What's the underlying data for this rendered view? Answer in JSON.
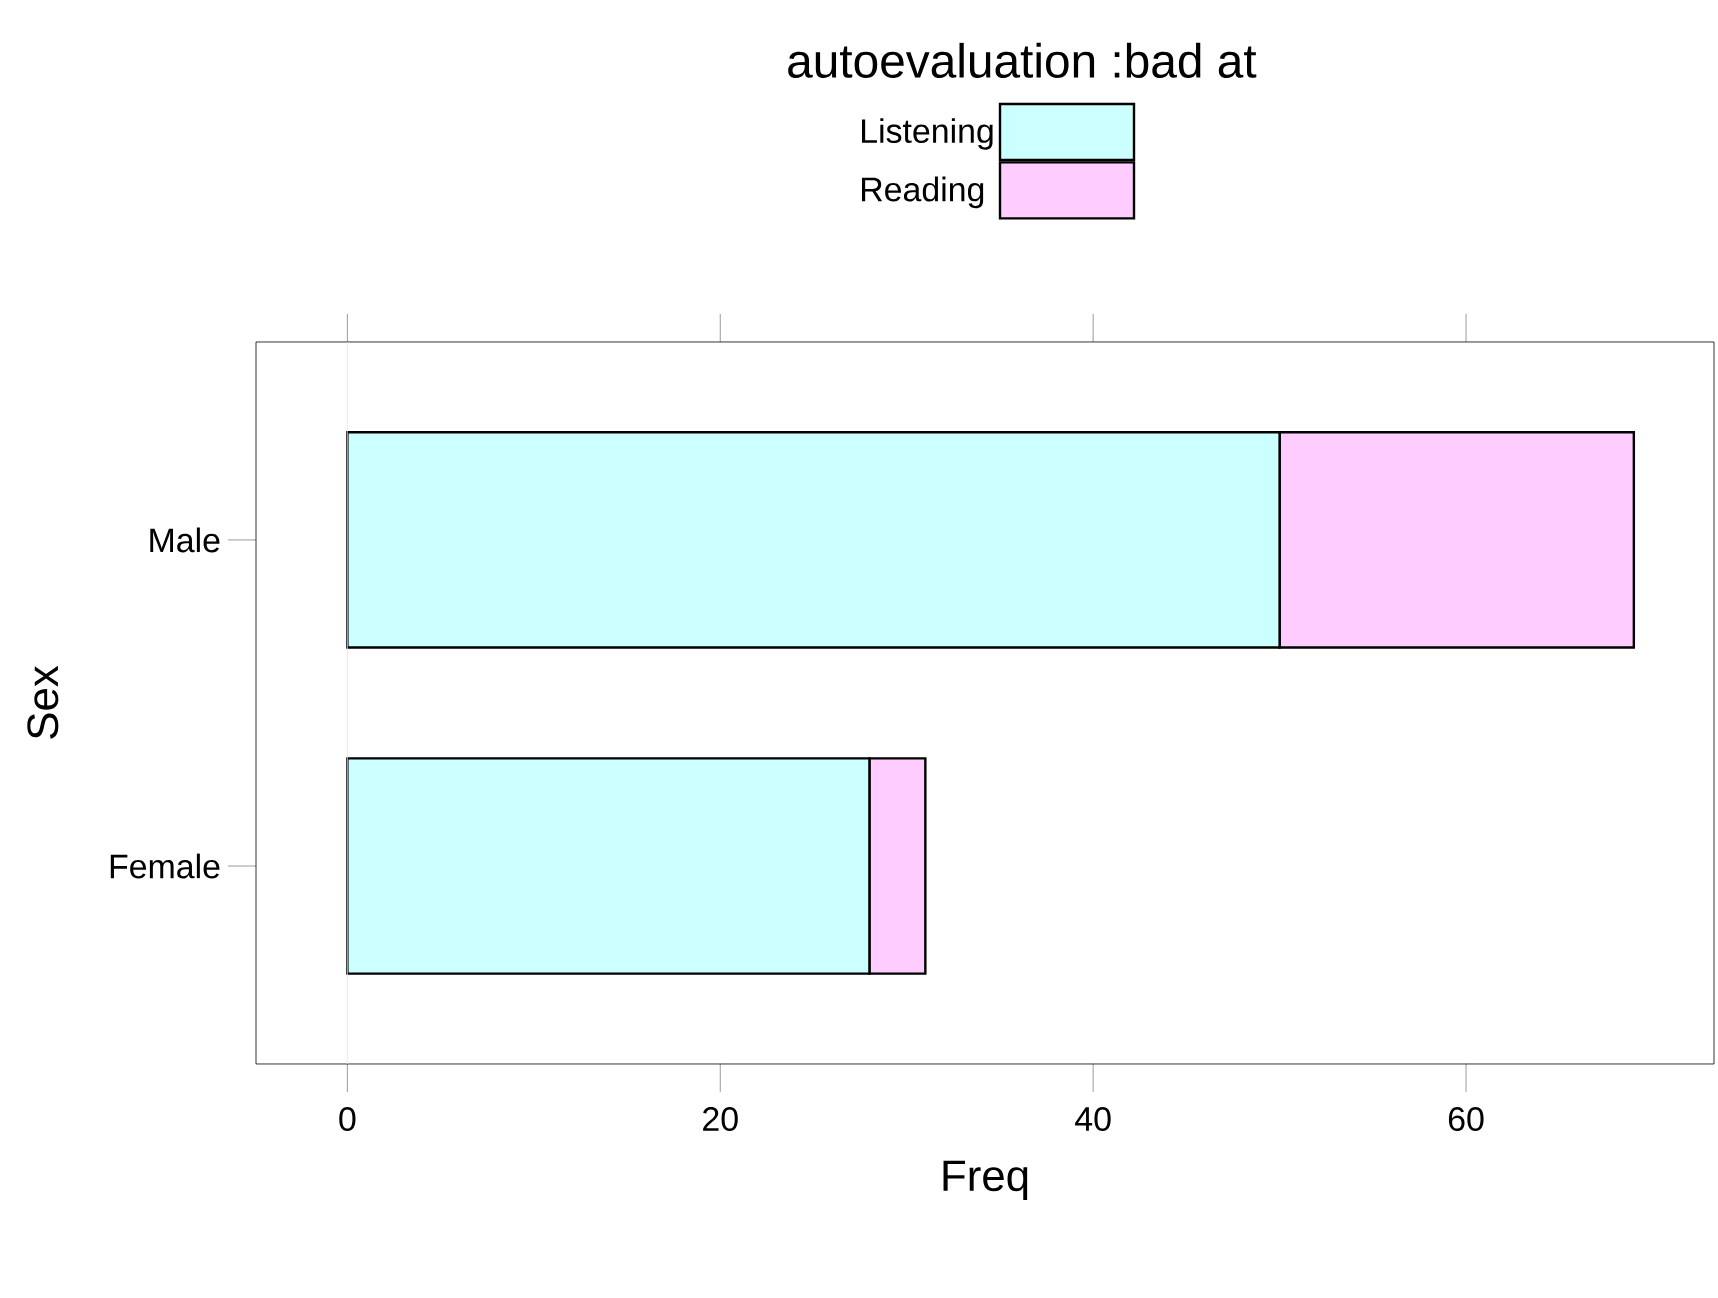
{
  "chart_data": {
    "type": "bar",
    "orientation": "horizontal",
    "stacked": true,
    "legend_title": "autoevaluation :bad at",
    "xlabel": "Freq",
    "ylabel": "Sex",
    "categories": [
      "Male",
      "Female"
    ],
    "series": [
      {
        "name": "Listening",
        "color": "#ccffff",
        "values": [
          50,
          28
        ]
      },
      {
        "name": "Reading",
        "color": "#ffccff",
        "values": [
          19,
          3
        ]
      }
    ],
    "xlim": [
      -4.9,
      73.3
    ],
    "xticks": [
      0,
      20,
      40,
      60
    ],
    "ref_lines": [
      {
        "axis": "x",
        "value": 0,
        "color": "#e6e6e6"
      }
    ],
    "legend": "top",
    "grid": false
  }
}
